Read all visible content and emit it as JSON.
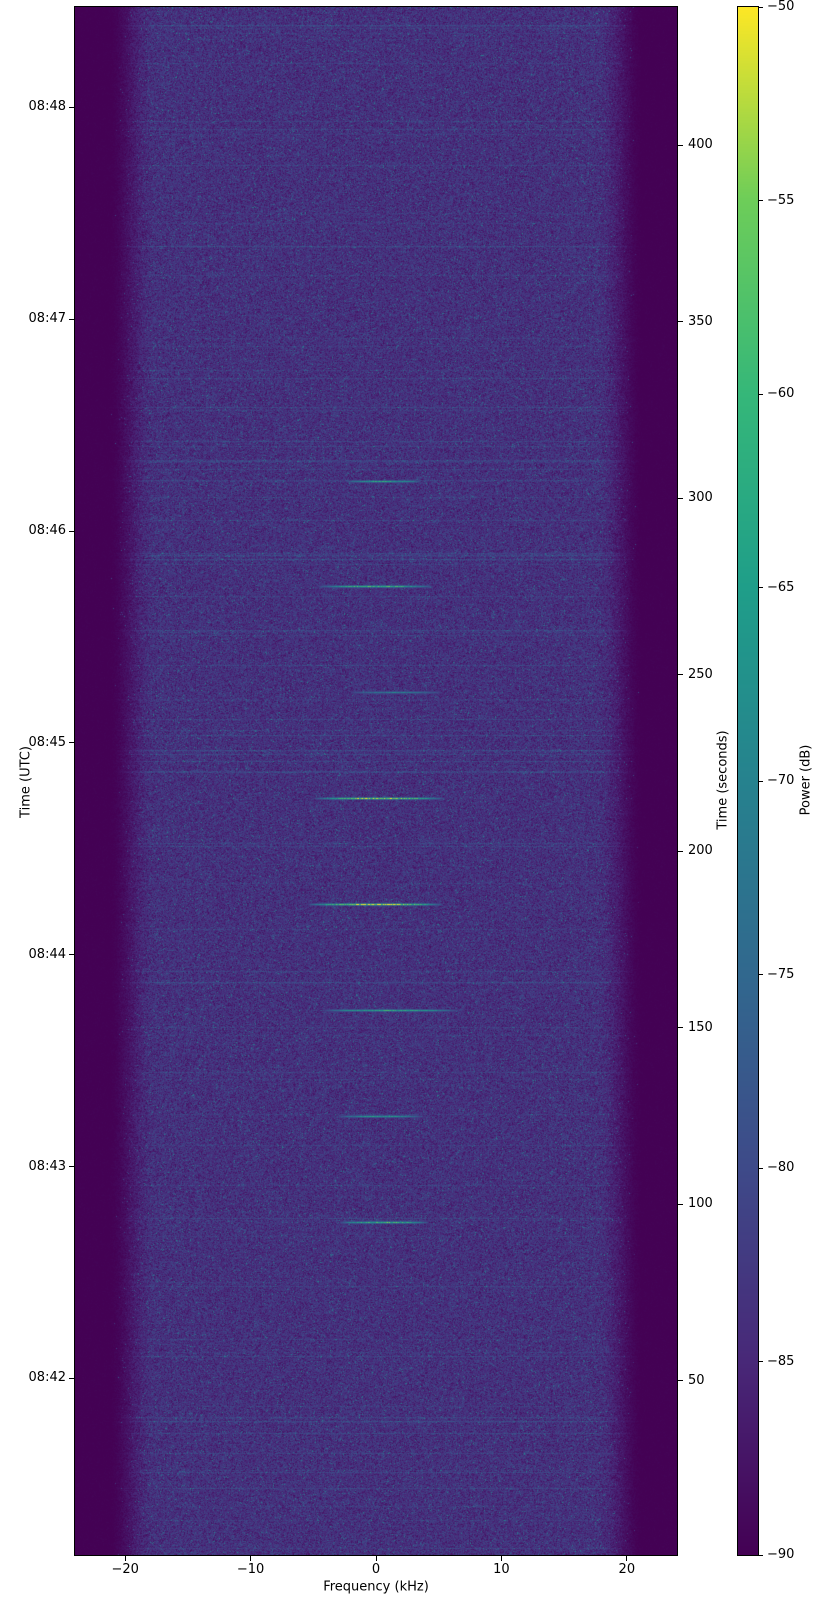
{
  "figure": {
    "xlabel": "Frequency (kHz)",
    "ylabel_left": "Time (UTC)",
    "ylabel_right": "Time (seconds)",
    "colorbar_label": "Power (dB)"
  },
  "chart_data": {
    "type": "heatmap",
    "subtype": "spectrogram-waterfall",
    "title": "",
    "xlabel": "Frequency (kHz)",
    "ylabel_left": "Time (UTC)",
    "ylabel_right": "Time (seconds)",
    "colorbar_label": "Power (dB)",
    "x_range_khz": [
      -24,
      24
    ],
    "x_ticks": [
      {
        "label": "−20",
        "khz": -20
      },
      {
        "label": "−10",
        "khz": -10
      },
      {
        "label": "0",
        "khz": 0
      },
      {
        "label": "10",
        "khz": 10
      },
      {
        "label": "20",
        "khz": 20
      }
    ],
    "t_seconds_range": [
      0.7,
      439.1
    ],
    "utc_ticks": [
      {
        "label": "08:48",
        "t_s": 410.7
      },
      {
        "label": "08:47",
        "t_s": 350.7
      },
      {
        "label": "08:46",
        "t_s": 290.7
      },
      {
        "label": "08:45",
        "t_s": 230.7
      },
      {
        "label": "08:44",
        "t_s": 170.7
      },
      {
        "label": "08:43",
        "t_s": 110.7
      },
      {
        "label": "08:42",
        "t_s": 50.7
      }
    ],
    "seconds_ticks": [
      {
        "label": "400",
        "s": 400
      },
      {
        "label": "350",
        "s": 350
      },
      {
        "label": "300",
        "s": 300
      },
      {
        "label": "250",
        "s": 250
      },
      {
        "label": "200",
        "s": 200
      },
      {
        "label": "150",
        "s": 150
      },
      {
        "label": "100",
        "s": 100
      },
      {
        "label": "50",
        "s": 50
      }
    ],
    "colorbar": {
      "colormap": "viridis",
      "min_db": -90,
      "max_db": -50,
      "min_color": "#440154",
      "max_color": "#fde725",
      "ticks": [
        {
          "label": "−50",
          "db": -50
        },
        {
          "label": "−55",
          "db": -55
        },
        {
          "label": "−60",
          "db": -60
        },
        {
          "label": "−65",
          "db": -65
        },
        {
          "label": "−70",
          "db": -70
        },
        {
          "label": "−75",
          "db": -75
        },
        {
          "label": "−80",
          "db": -80
        },
        {
          "label": "−85",
          "db": -85
        },
        {
          "label": "−90",
          "db": -90
        }
      ]
    },
    "noise": {
      "floor_db": -83.7,
      "dark_floor_db": -90,
      "occupied_band_khz": [
        -21.3,
        21.3
      ],
      "flat_band_khz": [
        -17.5,
        17.5
      ],
      "speckle_jitter_db": 5.1,
      "row_line_probability": 0.05,
      "teal_speckle_probability": 0.025,
      "seed": 42
    },
    "signal_bursts": [
      {
        "t_s": 305,
        "f_min_khz": -2.4,
        "f_max_khz": 3.6,
        "peak_db": -66
      },
      {
        "t_s": 275,
        "f_min_khz": -4.6,
        "f_max_khz": 4.5,
        "peak_db": -62
      },
      {
        "t_s": 245,
        "f_min_khz": -2.0,
        "f_max_khz": 5.2,
        "peak_db": -73
      },
      {
        "t_s": 215,
        "f_min_khz": -4.9,
        "f_max_khz": 5.4,
        "peak_db": -57
      },
      {
        "t_s": 185,
        "f_min_khz": -5.4,
        "f_max_khz": 5.3,
        "peak_db": -55
      },
      {
        "t_s": 155,
        "f_min_khz": -4.2,
        "f_max_khz": 6.5,
        "peak_db": -65
      },
      {
        "t_s": 125,
        "f_min_khz": -3.0,
        "f_max_khz": 3.7,
        "peak_db": -68
      },
      {
        "t_s": 95,
        "f_min_khz": -2.9,
        "f_max_khz": 4.2,
        "peak_db": -62
      }
    ]
  }
}
